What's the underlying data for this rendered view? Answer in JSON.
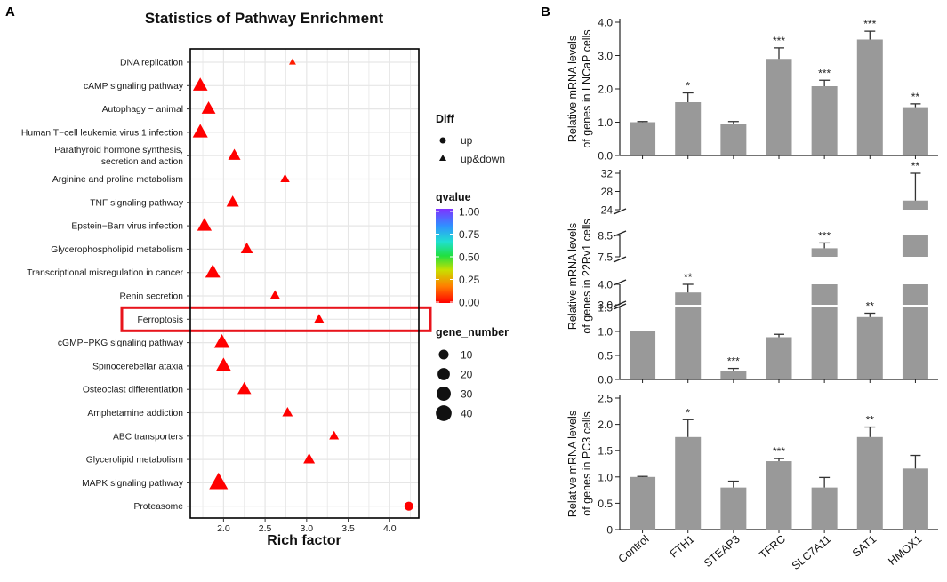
{
  "chart_data": [
    {
      "panel": "A",
      "type": "scatter",
      "title": "Statistics of Pathway Enrichment",
      "xlabel": "Rich factor",
      "ylabel": "",
      "xlim": [
        1.6,
        4.35
      ],
      "xticks": [
        "2.0",
        "2.5",
        "3.0",
        "3.5",
        "4.0"
      ],
      "pathways": [
        "DNA replication",
        "cAMP signaling pathway",
        "Autophagy − animal",
        "Human T−cell leukemia virus 1 infection",
        "Parathyroid hormone synthesis,|secretion and action",
        "Arginine and proline metabolism",
        "TNF signaling pathway",
        "Epstein−Barr virus infection",
        "Glycerophospholipid metabolism",
        "Transcriptional misregulation in cancer",
        "Renin secretion",
        "Ferroptosis",
        "cGMP−PKG signaling pathway",
        "Spinocerebellar ataxia",
        "Osteoclast differentiation",
        "Amphetamine addiction",
        "ABC transporters",
        "Glycerolipid metabolism",
        "MAPK signaling pathway",
        "Proteasome"
      ],
      "points": [
        {
          "rich": 2.83,
          "gene_number": 2,
          "diff": "up&down",
          "qvalue": 0.04
        },
        {
          "rich": 1.72,
          "gene_number": 24,
          "diff": "up&down",
          "qvalue": 0.0
        },
        {
          "rich": 1.82,
          "gene_number": 21,
          "diff": "up&down",
          "qvalue": 0.0
        },
        {
          "rich": 1.72,
          "gene_number": 26,
          "diff": "up&down",
          "qvalue": 0.0
        },
        {
          "rich": 2.13,
          "gene_number": 15,
          "diff": "up&down",
          "qvalue": 0.0
        },
        {
          "rich": 2.74,
          "gene_number": 6,
          "diff": "up&down",
          "qvalue": 0.0
        },
        {
          "rich": 2.11,
          "gene_number": 15,
          "diff": "up&down",
          "qvalue": 0.0
        },
        {
          "rich": 1.77,
          "gene_number": 23,
          "diff": "up&down",
          "qvalue": 0.0
        },
        {
          "rich": 2.28,
          "gene_number": 14,
          "diff": "up&down",
          "qvalue": 0.0
        },
        {
          "rich": 1.87,
          "gene_number": 25,
          "diff": "up&down",
          "qvalue": 0.0
        },
        {
          "rich": 2.62,
          "gene_number": 9,
          "diff": "up&down",
          "qvalue": 0.0
        },
        {
          "rich": 3.15,
          "gene_number": 7,
          "diff": "up&down",
          "qvalue": 0.0
        },
        {
          "rich": 1.98,
          "gene_number": 28,
          "diff": "up&down",
          "qvalue": 0.0
        },
        {
          "rich": 2.0,
          "gene_number": 27,
          "diff": "up&down",
          "qvalue": 0.0
        },
        {
          "rich": 2.25,
          "gene_number": 20,
          "diff": "up&down",
          "qvalue": 0.0
        },
        {
          "rich": 2.77,
          "gene_number": 9,
          "diff": "up&down",
          "qvalue": 0.0
        },
        {
          "rich": 3.33,
          "gene_number": 7,
          "diff": "up&down",
          "qvalue": 0.0
        },
        {
          "rich": 3.03,
          "gene_number": 12,
          "diff": "up&down",
          "qvalue": 0.0
        },
        {
          "rich": 1.94,
          "gene_number": 45,
          "diff": "up&down",
          "qvalue": 0.0
        },
        {
          "rich": 4.23,
          "gene_number": 10,
          "diff": "up",
          "qvalue": 0.0
        }
      ],
      "highlight": "Ferroptosis",
      "legend": {
        "diff_title": "Diff",
        "diff_entries": [
          "up",
          "up&down"
        ],
        "qvalue_title": "qvalue",
        "qvalue_ticks": [
          "1.00",
          "0.75",
          "0.50",
          "0.25",
          "0.00"
        ],
        "gene_title": "gene_number",
        "gene_entries": [
          "10",
          "20",
          "30",
          "40"
        ]
      }
    },
    {
      "panel": "B",
      "type": "bar",
      "categories": [
        "Control",
        "FTH1",
        "STEAP3",
        "TFRC",
        "SLC7A11",
        "SAT1",
        "HMOX1"
      ],
      "subplots": [
        {
          "ylabel": "Relative mRNA levels|of genes in LNCaP cells",
          "ylim": [
            0,
            4.0
          ],
          "yticks": [
            "0.0",
            "1.0",
            "2.0",
            "3.0",
            "4.0"
          ],
          "values": [
            1.0,
            1.6,
            0.96,
            2.9,
            2.08,
            3.48,
            1.45
          ],
          "errors": [
            0.02,
            0.28,
            0.06,
            0.33,
            0.18,
            0.25,
            0.1
          ],
          "significance": [
            "",
            "*",
            "",
            "***",
            "***",
            "***",
            "**"
          ]
        },
        {
          "ylabel": "Relative mRNA levels|of genes in 22Rv1 cells",
          "broken_axis": true,
          "segments": [
            [
              0,
              1.5
            ],
            [
              3.0,
              4.0
            ],
            [
              7.5,
              8.5
            ],
            [
              24,
              32
            ]
          ],
          "yticks": [
            "0.0",
            "0.5",
            "1.0",
            "1.5",
            "3.0",
            "4.0",
            "7.5",
            "8.5",
            "24",
            "28",
            "32"
          ],
          "values": [
            1.0,
            3.6,
            0.18,
            0.88,
            7.9,
            1.3,
            26
          ],
          "errors": [
            0.0,
            0.55,
            0.05,
            0.06,
            0.25,
            0.08,
            6
          ],
          "significance": [
            "",
            "**",
            "***",
            "",
            "***",
            "**",
            "**"
          ]
        },
        {
          "ylabel": "Relative mRNA levels|of genes in PC3 cells",
          "ylim": [
            0,
            2.5
          ],
          "yticks": [
            "0",
            "0.5",
            "1.0",
            "1.5",
            "2.0",
            "2.5"
          ],
          "values": [
            1.0,
            1.76,
            0.8,
            1.3,
            0.8,
            1.76,
            1.16
          ],
          "errors": [
            0.01,
            0.33,
            0.12,
            0.05,
            0.19,
            0.19,
            0.25
          ],
          "significance": [
            "",
            "*",
            "",
            "***",
            "",
            "**",
            ""
          ]
        }
      ]
    }
  ]
}
